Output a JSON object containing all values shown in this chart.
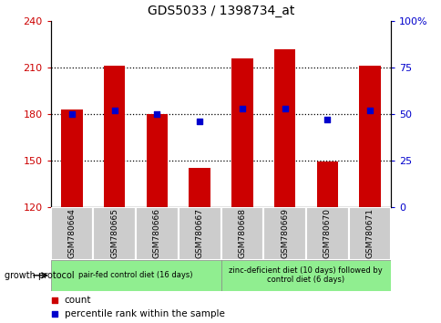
{
  "title": "GDS5033 / 1398734_at",
  "samples": [
    "GSM780664",
    "GSM780665",
    "GSM780666",
    "GSM780667",
    "GSM780668",
    "GSM780669",
    "GSM780670",
    "GSM780671"
  ],
  "count_values": [
    183,
    211,
    180,
    145,
    216,
    222,
    149,
    211
  ],
  "percentile_values": [
    50,
    52,
    50,
    46,
    53,
    53,
    47,
    52
  ],
  "ylim_left": [
    120,
    240
  ],
  "ylim_right": [
    0,
    100
  ],
  "yticks_left": [
    120,
    150,
    180,
    210,
    240
  ],
  "yticks_right": [
    0,
    25,
    50,
    75,
    100
  ],
  "bar_color": "#cc0000",
  "dot_color": "#0000cc",
  "bar_bottom": 120,
  "group1_label": "pair-fed control diet (16 days)",
  "group2_label": "zinc-deficient diet (10 days) followed by\ncontrol diet (6 days)",
  "group1_indices": [
    0,
    1,
    2,
    3
  ],
  "group2_indices": [
    4,
    5,
    6,
    7
  ],
  "protocol_label": "growth protocol",
  "legend_count": "count",
  "legend_pct": "percentile rank within the sample",
  "group1_color": "#90ee90",
  "group2_color": "#90ee90",
  "label_color_left": "#cc0000",
  "label_color_right": "#0000cc",
  "bg_xtick": "#cccccc",
  "grid_dotted_vals": [
    150,
    180,
    210
  ],
  "bar_width": 0.5
}
